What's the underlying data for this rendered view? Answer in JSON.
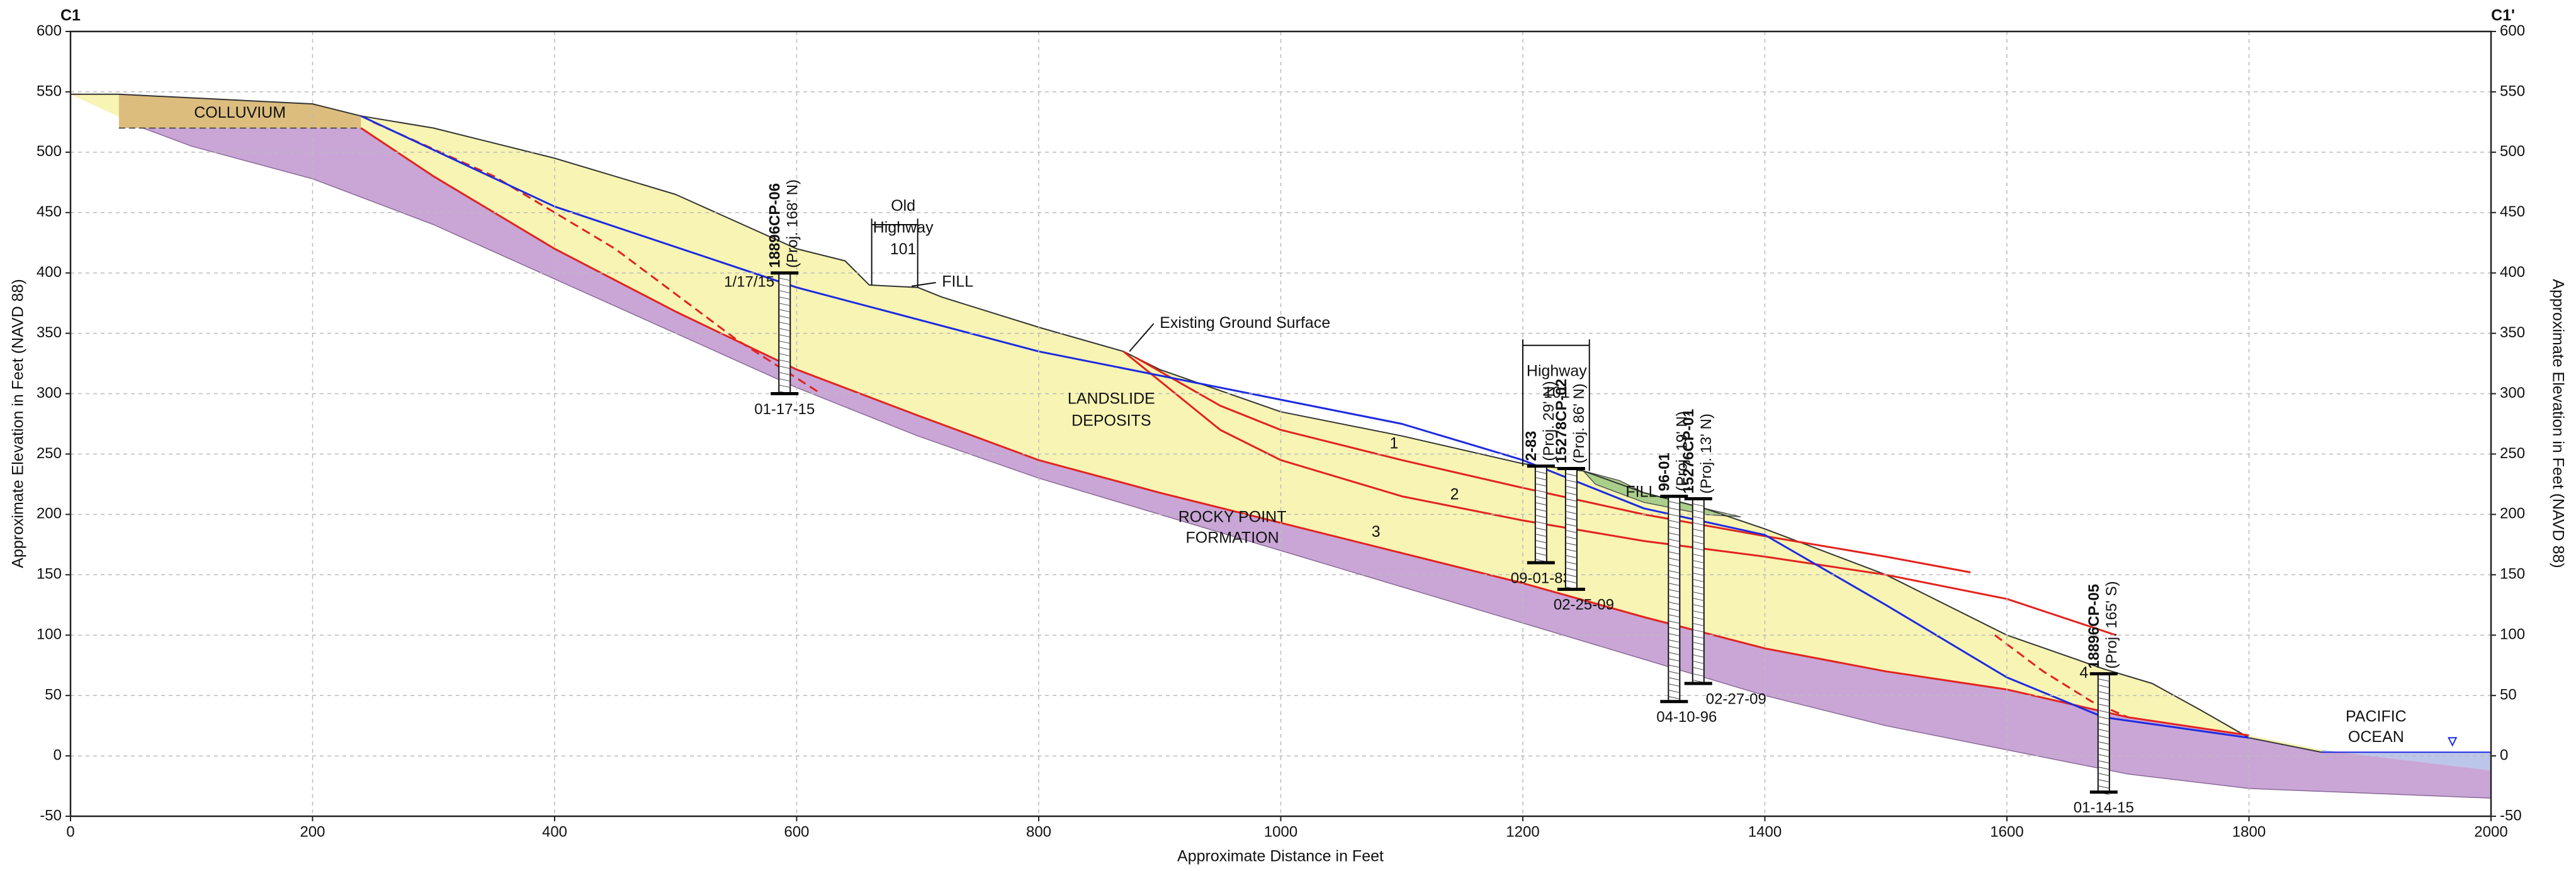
{
  "chart_data": {
    "type": "cross-section",
    "corner_left": "C1",
    "corner_right": "C1'",
    "x_label": "Approximate Distance in Feet",
    "y_label": "Approximate Elevation in Feet (NAVD 88)",
    "xlim": [
      0,
      2000
    ],
    "xticks": [
      0,
      200,
      400,
      600,
      800,
      1000,
      1200,
      1400,
      1600,
      1800,
      2000
    ],
    "ylim": [
      -50,
      600
    ],
    "yticks": [
      -50,
      0,
      50,
      100,
      150,
      200,
      250,
      300,
      350,
      400,
      450,
      500,
      550,
      600
    ],
    "grid": true,
    "colors": {
      "colluvium": "#dcbd7e",
      "landslide": "#f7f4b4",
      "bedrock": "#c9a6d6",
      "fill": "#a9cf8a",
      "ocean": "#bcc6ea",
      "water": "#1d2be0",
      "slip": "#e3231f"
    },
    "surfaces": {
      "ground": {
        "x": [
          0,
          40,
          100,
          200,
          240,
          300,
          400,
          500,
          600,
          640,
          660,
          700,
          720,
          800,
          870,
          900,
          1000,
          1100,
          1200,
          1250,
          1300,
          1350,
          1400,
          1500,
          1600,
          1680,
          1720,
          1760,
          1800,
          1860
        ],
        "y": [
          548,
          548,
          545,
          540,
          530,
          520,
          495,
          465,
          420,
          410,
          390,
          388,
          380,
          355,
          335,
          320,
          285,
          265,
          242,
          236,
          218,
          205,
          188,
          150,
          100,
          72,
          60,
          38,
          15,
          3
        ]
      },
      "bedrock": {
        "x": [
          60,
          240,
          300,
          400,
          500,
          600,
          700,
          800,
          900,
          1000,
          1100,
          1200,
          1300,
          1400,
          1500,
          1600,
          1700,
          1800,
          1860,
          1900,
          2000
        ],
        "y": [
          520,
          520,
          480,
          420,
          368,
          320,
          282,
          245,
          218,
          193,
          168,
          143,
          115,
          89,
          70,
          55,
          32,
          17,
          5,
          0,
          -12
        ]
      },
      "bedrock_base": {
        "x": [
          60,
          100,
          200,
          300,
          400,
          500,
          600,
          700,
          800,
          900,
          1000,
          1100,
          1200,
          1300,
          1400,
          1500,
          1600,
          1700,
          1800,
          2000
        ],
        "y": [
          520,
          505,
          478,
          440,
          395,
          350,
          305,
          265,
          230,
          200,
          170,
          140,
          110,
          80,
          50,
          25,
          5,
          -15,
          -27,
          -35
        ]
      },
      "colluvium_base": {
        "x": [
          40,
          240
        ],
        "y": [
          520,
          520
        ]
      },
      "fill": {
        "x": [
          1250,
          1280,
          1300,
          1350,
          1380,
          1350,
          1300,
          1260
        ],
        "y": [
          236,
          228,
          218,
          205,
          198,
          200,
          210,
          225
        ]
      },
      "ocean": {
        "x": [
          1860,
          2000
        ],
        "y": [
          3,
          3
        ]
      },
      "water_table": {
        "x": [
          240,
          400,
          600,
          800,
          1000,
          1100,
          1200,
          1300,
          1400,
          1500,
          1600,
          1680,
          1800
        ],
        "y": [
          530,
          455,
          388,
          335,
          295,
          275,
          245,
          205,
          183,
          125,
          65,
          32,
          15
        ]
      },
      "slip_1": {
        "x": [
          880,
          950,
          1000,
          1100,
          1200,
          1300,
          1400,
          1500,
          1570
        ],
        "y": [
          330,
          290,
          270,
          245,
          222,
          200,
          182,
          165,
          152
        ]
      },
      "slip_2": {
        "x": [
          870,
          950,
          1000,
          1100,
          1200,
          1300,
          1400,
          1500,
          1600,
          1690
        ],
        "y": [
          335,
          270,
          245,
          215,
          195,
          178,
          165,
          150,
          130,
          100
        ]
      },
      "slip_4": {
        "x": [
          1590,
          1630,
          1670,
          1700
        ],
        "y": [
          100,
          70,
          45,
          32
        ]
      },
      "slip_upper": {
        "x": [
          250,
          350,
          450,
          550,
          620
        ],
        "y": [
          525,
          480,
          420,
          345,
          300
        ]
      }
    },
    "slip_labels": [
      "1",
      "2",
      "3",
      "4"
    ],
    "borings": [
      {
        "name": "18896CP-06",
        "proj": "(Proj. 168' N)",
        "date": "01-17-15",
        "x": 590,
        "top": 400,
        "bottom": 300
      },
      {
        "name": "2-83",
        "proj": "(Proj. 29' N)",
        "date": "09-01-83",
        "x": 1215,
        "top": 240,
        "bottom": 160
      },
      {
        "name": "15278CP-02",
        "proj": "(Proj. 86' N)",
        "date": "02-25-09",
        "x": 1240,
        "top": 238,
        "bottom": 138
      },
      {
        "name": "96-01",
        "proj": "(Proj. 19' N)",
        "date": "04-10-96",
        "x": 1325,
        "top": 215,
        "bottom": 45
      },
      {
        "name": "15276CP-01",
        "proj": "(Proj. 13' N)",
        "date": "02-27-09",
        "x": 1345,
        "top": 213,
        "bottom": 60
      },
      {
        "name": "18896CP-05",
        "proj": "(Proj. 165' S)",
        "date": "01-14-15",
        "x": 1680,
        "top": 68,
        "bottom": -30
      }
    ],
    "labels": {
      "colluvium": "COLLUVIUM",
      "landslide_1": "LANDSLIDE",
      "landslide_2": "DEPOSITS",
      "rocky_1": "ROCKY POINT",
      "rocky_2": "FORMATION",
      "old_hwy_1": "Old",
      "old_hwy_2": "Highway",
      "old_hwy_3": "101",
      "fill_old": "FILL",
      "ground_surface": "Existing Ground Surface",
      "hwy_1": "Highway",
      "hwy_2": "101",
      "fill_new": "FILL",
      "ocean_1": "PACIFIC",
      "ocean_2": "OCEAN",
      "water_date": "1/17/15"
    }
  }
}
